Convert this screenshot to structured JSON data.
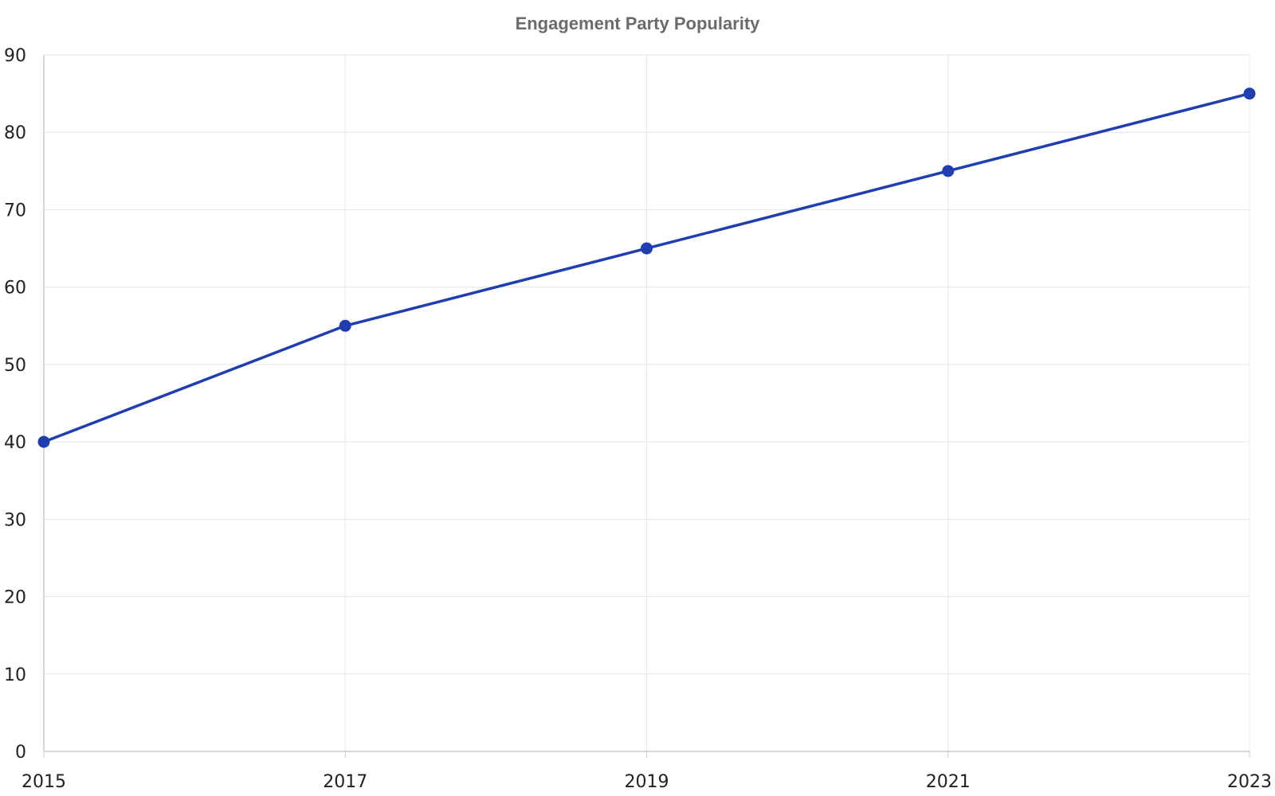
{
  "chart_data": {
    "type": "line",
    "title": "Engagement Party Popularity",
    "xlabel": "",
    "ylabel": "",
    "x": [
      2015,
      2017,
      2019,
      2021,
      2023
    ],
    "x_tick_labels": [
      "2015",
      "2017",
      "2019",
      "2021",
      "2023"
    ],
    "y_ticks": [
      0,
      10,
      20,
      30,
      40,
      50,
      60,
      70,
      80,
      90
    ],
    "ylim": [
      0,
      90
    ],
    "series": [
      {
        "values": [
          40,
          55,
          65,
          75,
          85
        ],
        "color": "#1f3fb0"
      }
    ],
    "grid": true,
    "legend": "none"
  }
}
